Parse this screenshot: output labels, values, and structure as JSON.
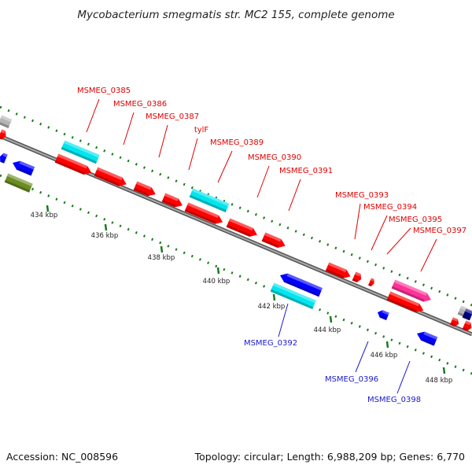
{
  "title": "Mycobacterium smegmatis str. MC2 155, complete genome",
  "footer": {
    "accession": "Accession: NC_008596",
    "summary": "Topology: circular; Length: 6,988,209 bp; Genes: 6,770"
  },
  "colors": {
    "forward_cds": "#ff0000",
    "reverse_cds": "#0000ff",
    "rna": "#00e5ee",
    "other": "#ff3399",
    "misc": "#6b8e23",
    "backbone": "#808080",
    "tick": "#1a7a1a"
  },
  "scale": {
    "ticks": [
      {
        "label": "434 kbp"
      },
      {
        "label": "436 kbp"
      },
      {
        "label": "438 kbp"
      },
      {
        "label": "440 kbp"
      },
      {
        "label": "442 kbp"
      },
      {
        "label": "444 kbp"
      },
      {
        "label": "446 kbp"
      },
      {
        "label": "448 kbp"
      }
    ]
  },
  "gene_labels": [
    {
      "text": "MSMEG_0385",
      "strand": "forward"
    },
    {
      "text": "MSMEG_0386",
      "strand": "forward"
    },
    {
      "text": "MSMEG_0387",
      "strand": "forward"
    },
    {
      "text": "tylF",
      "strand": "forward"
    },
    {
      "text": "MSMEG_0389",
      "strand": "forward"
    },
    {
      "text": "MSMEG_0390",
      "strand": "forward"
    },
    {
      "text": "MSMEG_0391",
      "strand": "forward"
    },
    {
      "text": "MSMEG_0393",
      "strand": "forward"
    },
    {
      "text": "MSMEG_0394",
      "strand": "forward"
    },
    {
      "text": "MSMEG_0395",
      "strand": "forward"
    },
    {
      "text": "MSMEG_0397",
      "strand": "forward"
    },
    {
      "text": "MSMEG_0392",
      "strand": "reverse"
    },
    {
      "text": "MSMEG_0396",
      "strand": "reverse"
    },
    {
      "text": "MSMEG_0398",
      "strand": "reverse"
    }
  ]
}
